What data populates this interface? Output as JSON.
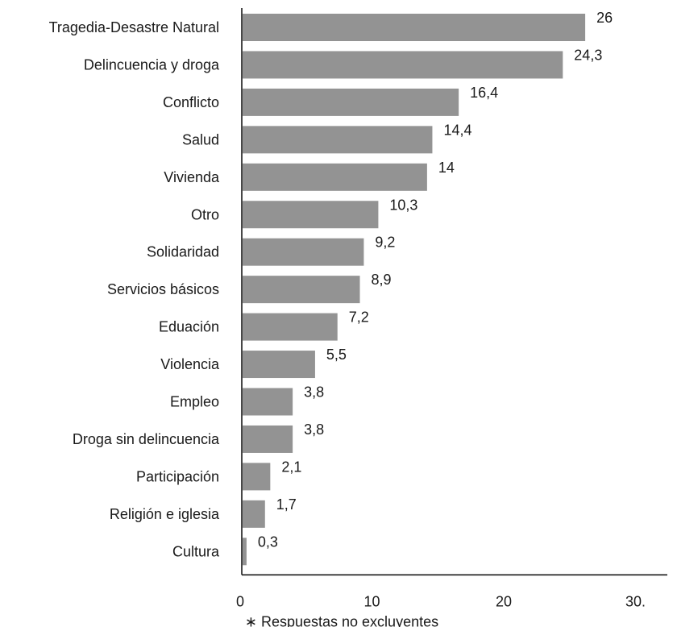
{
  "chart_data": {
    "type": "bar",
    "orientation": "horizontal",
    "categories": [
      "Tragedia-Desastre Natural",
      "Delincuencia y droga",
      "Conflicto",
      "Salud",
      "Vivienda",
      "Otro",
      "Solidaridad",
      "Servicios básicos",
      "Eduación",
      "Violencia",
      "Empleo",
      "Droga sin delincuencia",
      "Participación",
      "Religión e iglesia",
      "Cultura"
    ],
    "values": [
      26,
      24.3,
      16.4,
      14.4,
      14,
      10.3,
      9.2,
      8.9,
      7.2,
      5.5,
      3.8,
      3.8,
      2.1,
      1.7,
      0.3
    ],
    "value_labels": [
      "26",
      "24,3",
      "16,4",
      "14,4",
      "14",
      "10,3",
      "9,2",
      "8,9",
      "7,2",
      "5,5",
      "3,8",
      "3,8",
      "2,1",
      "1,7",
      "0,3"
    ],
    "x_ticks": [
      0,
      10,
      20,
      30
    ],
    "x_tick_labels": [
      "0",
      "10",
      "20",
      "30."
    ],
    "xlim": [
      0,
      30
    ],
    "grid": false,
    "bar_color": "#939393",
    "footnote": "∗ Respuestas no excluyentes"
  }
}
